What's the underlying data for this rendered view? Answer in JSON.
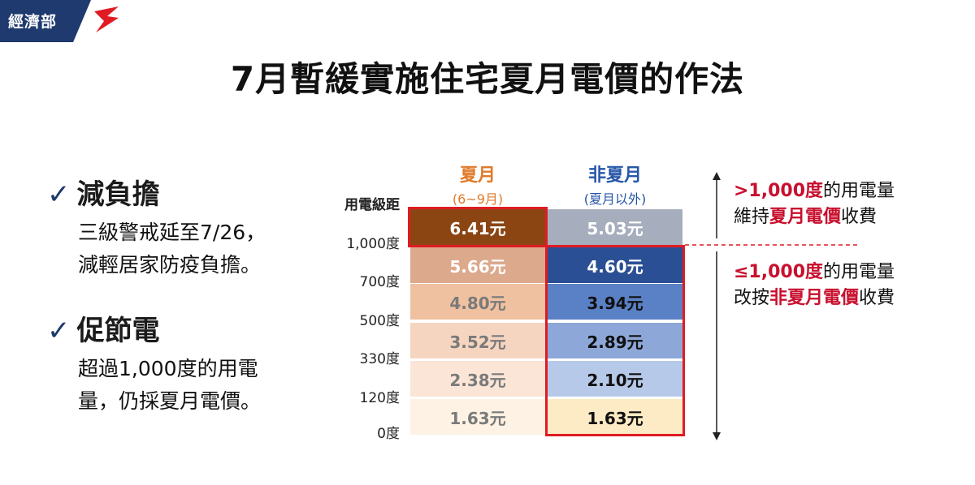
{
  "brand": {
    "name": "經濟部",
    "bar_color": "#1e3a6e",
    "accent_color": "#e01b23"
  },
  "title": "7月暫緩實施住宅夏月電價的作法",
  "bullets": [
    {
      "check": "✓",
      "heading": "減負擔",
      "lines": [
        "三級警戒延至7/26，",
        "減輕居家防疫負擔。"
      ]
    },
    {
      "check": "✓",
      "heading": "促節電",
      "lines": [
        "超過1,000度的用電",
        "量，仍採夏月電價。"
      ]
    }
  ],
  "table": {
    "tier_header": "用電級距",
    "tiers": [
      "1,000度",
      "700度",
      "500度",
      "330度",
      "120度",
      "0度"
    ],
    "summer": {
      "name": "夏月",
      "sub": "(6~9月)",
      "color": "#e07a2a",
      "prices": [
        "6.41元",
        "5.66元",
        "4.80元",
        "3.52元",
        "2.38元",
        "1.63元"
      ]
    },
    "non_summer": {
      "name": "非夏月",
      "sub": "(夏月以外)",
      "color": "#2656a8",
      "prices": [
        "5.03元",
        "4.60元",
        "3.94元",
        "2.89元",
        "2.10元",
        "1.63元"
      ]
    }
  },
  "notes": {
    "above": {
      "highlight": ">1,000度",
      "mid": "的用電量",
      "line2_pre": "維持",
      "line2_red": "夏月電價",
      "line2_post": "收費"
    },
    "below": {
      "highlight": "≤1,000度",
      "mid": "的用電量",
      "line2_pre": "改按",
      "line2_red": "非夏月電價",
      "line2_post": "收費"
    }
  }
}
